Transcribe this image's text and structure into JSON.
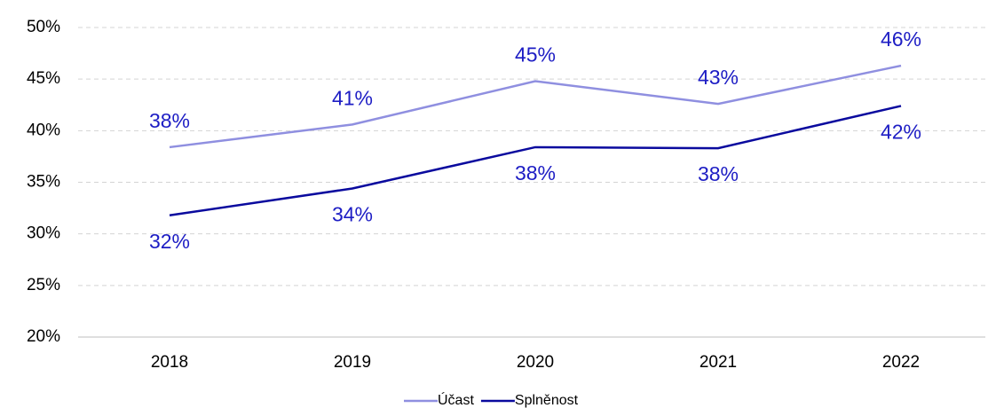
{
  "chart_data": {
    "type": "line",
    "categories": [
      "2018",
      "2019",
      "2020",
      "2021",
      "2022"
    ],
    "series": [
      {
        "name": "Účast",
        "color": "#8f8fe0",
        "values": [
          38.4,
          40.6,
          44.8,
          42.6,
          46.3
        ],
        "value_labels": [
          "38%",
          "41%",
          "45%",
          "43%",
          "46%"
        ]
      },
      {
        "name": "Splněnost",
        "color": "#0a0a9e",
        "values": [
          31.8,
          34.4,
          38.4,
          38.3,
          42.4
        ],
        "value_labels": [
          "32%",
          "34%",
          "38%",
          "38%",
          "42%"
        ]
      }
    ],
    "ylim": [
      20,
      50
    ],
    "yticks": [
      {
        "value": 20,
        "label": "20%"
      },
      {
        "value": 25,
        "label": "25%"
      },
      {
        "value": 30,
        "label": "30%"
      },
      {
        "value": 35,
        "label": "35%"
      },
      {
        "value": 40,
        "label": "40%"
      },
      {
        "value": 45,
        "label": "45%"
      },
      {
        "value": 50,
        "label": "50%"
      }
    ],
    "grid": true,
    "legend": "bottom"
  }
}
